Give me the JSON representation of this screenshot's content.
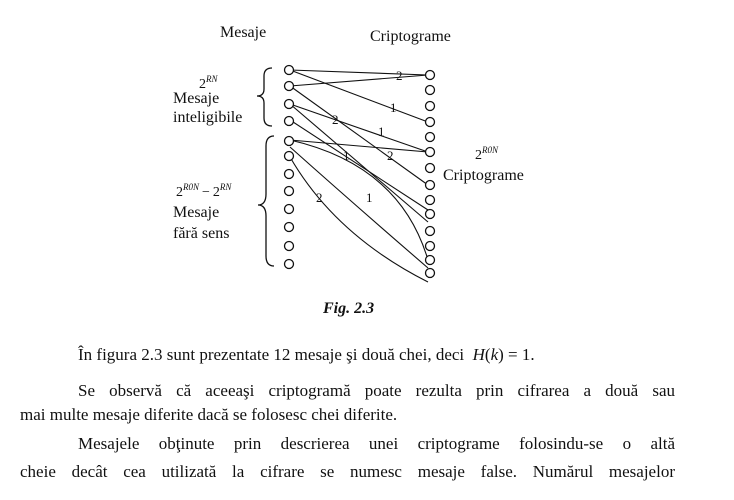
{
  "diagram": {
    "header_messages": "Mesaje",
    "header_cryptograms": "Criptograme",
    "intelligible_count": "2",
    "intelligible_count_exp": "RN",
    "intelligible_label_1": "Mesaje",
    "intelligible_label_2": "inteligibile",
    "nonsense_count_a": "2",
    "nonsense_count_a_exp": "R0N",
    "nonsense_minus": "−",
    "nonsense_count_b": "2",
    "nonsense_count_b_exp": "RN",
    "nonsense_label_1": "Mesaje",
    "nonsense_label_2": "fără sens",
    "crypto_count": "2",
    "crypto_count_exp": "R0N",
    "crypto_label": "Criptograme",
    "key_label_1": "1",
    "key_label_2": "2",
    "caption": "Fig. 2.3"
  },
  "paragraph1": {
    "text": "În figura 2.3 sunt prezentate 12 mesaje şi două chei, deci",
    "formula_H": "H",
    "formula_paren_open": "(",
    "formula_k": "k",
    "formula_rest": ") = 1."
  },
  "paragraph2": {
    "line1": "Se observă că aceeaşi criptogramă poate rezulta prin cifrarea a două sau",
    "line2": "mai multe mesaje diferite dacă se folosesc chei diferite."
  },
  "paragraph3": {
    "line1": "Mesajele obţinute prin descrierea unei criptograme folosindu-se o altă",
    "line2": "cheie decât cea utilizată la cifrare se numesc mesaje false. Numărul mesajelor"
  }
}
